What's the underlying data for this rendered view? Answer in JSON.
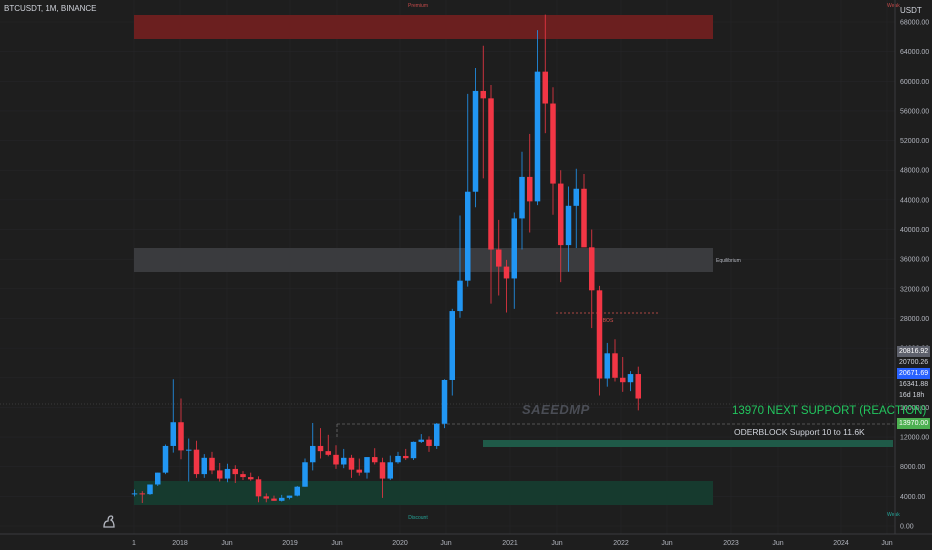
{
  "header": {
    "symbol": "BTCUSDT, 1M, BINANCE"
  },
  "axis": {
    "unit": "USDT"
  },
  "zones": {
    "premium": "Premium",
    "equilibrium": "Equilibrium",
    "discount": "Discount",
    "bos": "BOS",
    "edge_top": "Weak",
    "edge_bottom": "Weak"
  },
  "tags": {
    "t1": "20816.92",
    "t2": "20700.26",
    "t3": "20671.69",
    "t4": "16341.88",
    "t5": "16d 18h",
    "t6": "13970.00"
  },
  "annotations": {
    "support": "13970 NEXT SUPPORT  (REACTION)",
    "orderblock": "ODERBLOCK  Support 10 to 11.6K",
    "watermark": "SAEEDMP"
  },
  "colors": {
    "up": "#2196f3",
    "down": "#f23645",
    "premium": "#6b1f1f",
    "equilibrium": "#3a3b3e",
    "discount": "#163a2e",
    "green_text": "#22c55e"
  },
  "chart_data": {
    "type": "candlestick",
    "title": "BTCUSDT, 1M, BINANCE",
    "ylim": [
      0,
      70000
    ],
    "y_ticks": [
      "68000.00",
      "64000.00",
      "60000.00",
      "56000.00",
      "52000.00",
      "48000.00",
      "44000.00",
      "40000.00",
      "36000.00",
      "32000.00",
      "28000.00",
      "24000.00",
      "20000.00",
      "16000.00",
      "12000.00",
      "8000.00",
      "4000.00",
      "0.00"
    ],
    "x_ticks": [
      "1",
      "2018",
      "Jun",
      "2019",
      "Jun",
      "2020",
      "Jun",
      "2021",
      "Jun",
      "2022",
      "Jun",
      "2023",
      "Jun",
      "2024",
      "Jun"
    ],
    "candles": [
      {
        "o": 4300,
        "h": 4900,
        "l": 4000,
        "c": 4400
      },
      {
        "o": 4400,
        "h": 4700,
        "l": 3100,
        "c": 4300
      },
      {
        "o": 4300,
        "h": 5600,
        "l": 4200,
        "c": 5600
      },
      {
        "o": 5600,
        "h": 7200,
        "l": 5400,
        "c": 7200
      },
      {
        "o": 7200,
        "h": 11000,
        "l": 7000,
        "c": 10800
      },
      {
        "o": 10800,
        "h": 19800,
        "l": 9900,
        "c": 14000
      },
      {
        "o": 14000,
        "h": 17200,
        "l": 9000,
        "c": 10200
      },
      {
        "o": 10200,
        "h": 11800,
        "l": 6000,
        "c": 10300
      },
      {
        "o": 10300,
        "h": 11500,
        "l": 6500,
        "c": 7000
      },
      {
        "o": 7000,
        "h": 9700,
        "l": 6500,
        "c": 9200
      },
      {
        "o": 9200,
        "h": 10000,
        "l": 7000,
        "c": 7500
      },
      {
        "o": 7500,
        "h": 8500,
        "l": 6000,
        "c": 6400
      },
      {
        "o": 6400,
        "h": 8400,
        "l": 5900,
        "c": 7700
      },
      {
        "o": 7700,
        "h": 8200,
        "l": 5800,
        "c": 7000
      },
      {
        "o": 7000,
        "h": 7400,
        "l": 6200,
        "c": 6600
      },
      {
        "o": 6600,
        "h": 7200,
        "l": 6100,
        "c": 6300
      },
      {
        "o": 6300,
        "h": 6700,
        "l": 3200,
        "c": 4000
      },
      {
        "o": 4000,
        "h": 4400,
        "l": 3200,
        "c": 3700
      },
      {
        "o": 3700,
        "h": 4100,
        "l": 3400,
        "c": 3400
      },
      {
        "o": 3400,
        "h": 4200,
        "l": 3300,
        "c": 3800
      },
      {
        "o": 3800,
        "h": 4100,
        "l": 3600,
        "c": 4100
      },
      {
        "o": 4100,
        "h": 5400,
        "l": 4000,
        "c": 5300
      },
      {
        "o": 5300,
        "h": 9100,
        "l": 5300,
        "c": 8600
      },
      {
        "o": 8600,
        "h": 13900,
        "l": 7500,
        "c": 10800
      },
      {
        "o": 10800,
        "h": 13200,
        "l": 9100,
        "c": 10100
      },
      {
        "o": 10100,
        "h": 12300,
        "l": 9400,
        "c": 9600
      },
      {
        "o": 9600,
        "h": 10900,
        "l": 7700,
        "c": 8300
      },
      {
        "o": 8300,
        "h": 10400,
        "l": 7800,
        "c": 9200
      },
      {
        "o": 9200,
        "h": 9600,
        "l": 6500,
        "c": 7600
      },
      {
        "o": 7600,
        "h": 9100,
        "l": 6800,
        "c": 7200
      },
      {
        "o": 7200,
        "h": 9200,
        "l": 6400,
        "c": 9300
      },
      {
        "o": 9300,
        "h": 10500,
        "l": 8300,
        "c": 8600
      },
      {
        "o": 8600,
        "h": 9200,
        "l": 3800,
        "c": 6400
      },
      {
        "o": 6400,
        "h": 9500,
        "l": 6200,
        "c": 8600
      },
      {
        "o": 8600,
        "h": 10000,
        "l": 8400,
        "c": 9450
      },
      {
        "o": 9450,
        "h": 10400,
        "l": 8900,
        "c": 9150
      },
      {
        "o": 9150,
        "h": 11400,
        "l": 8900,
        "c": 11350
      },
      {
        "o": 11350,
        "h": 12400,
        "l": 11200,
        "c": 11650
      },
      {
        "o": 11650,
        "h": 12100,
        "l": 10000,
        "c": 10800
      },
      {
        "o": 10800,
        "h": 13900,
        "l": 10400,
        "c": 13800
      },
      {
        "o": 13800,
        "h": 19800,
        "l": 13200,
        "c": 19700
      },
      {
        "o": 19700,
        "h": 29300,
        "l": 17600,
        "c": 29000
      },
      {
        "o": 29000,
        "h": 41900,
        "l": 28100,
        "c": 33100
      },
      {
        "o": 33100,
        "h": 58300,
        "l": 32300,
        "c": 45100
      },
      {
        "o": 45100,
        "h": 61800,
        "l": 43000,
        "c": 58700
      },
      {
        "o": 58700,
        "h": 64800,
        "l": 46900,
        "c": 57700
      },
      {
        "o": 57700,
        "h": 59500,
        "l": 30000,
        "c": 37300
      },
      {
        "o": 37300,
        "h": 41300,
        "l": 31100,
        "c": 35000
      },
      {
        "o": 35000,
        "h": 35900,
        "l": 28800,
        "c": 33400
      },
      {
        "o": 33400,
        "h": 42300,
        "l": 29300,
        "c": 41500
      },
      {
        "o": 41500,
        "h": 50500,
        "l": 37300,
        "c": 47100
      },
      {
        "o": 47100,
        "h": 52900,
        "l": 39600,
        "c": 43800
      },
      {
        "o": 43800,
        "h": 66900,
        "l": 43300,
        "c": 61300
      },
      {
        "o": 61300,
        "h": 69000,
        "l": 53000,
        "c": 57000
      },
      {
        "o": 57000,
        "h": 59200,
        "l": 42000,
        "c": 46200
      },
      {
        "o": 46200,
        "h": 48000,
        "l": 32900,
        "c": 37900
      },
      {
        "o": 37900,
        "h": 45800,
        "l": 34300,
        "c": 43200
      },
      {
        "o": 43200,
        "h": 48200,
        "l": 37500,
        "c": 45500
      },
      {
        "o": 45500,
        "h": 47500,
        "l": 37700,
        "c": 37600
      },
      {
        "o": 37600,
        "h": 40000,
        "l": 26700,
        "c": 31800
      },
      {
        "o": 31800,
        "h": 32400,
        "l": 17600,
        "c": 19900
      },
      {
        "o": 19900,
        "h": 24700,
        "l": 18800,
        "c": 23300
      },
      {
        "o": 23300,
        "h": 25200,
        "l": 19500,
        "c": 20000
      },
      {
        "o": 20000,
        "h": 22800,
        "l": 18100,
        "c": 19400
      },
      {
        "o": 19400,
        "h": 20900,
        "l": 18200,
        "c": 20500
      },
      {
        "o": 20500,
        "h": 21500,
        "l": 15600,
        "c": 17200
      }
    ]
  }
}
